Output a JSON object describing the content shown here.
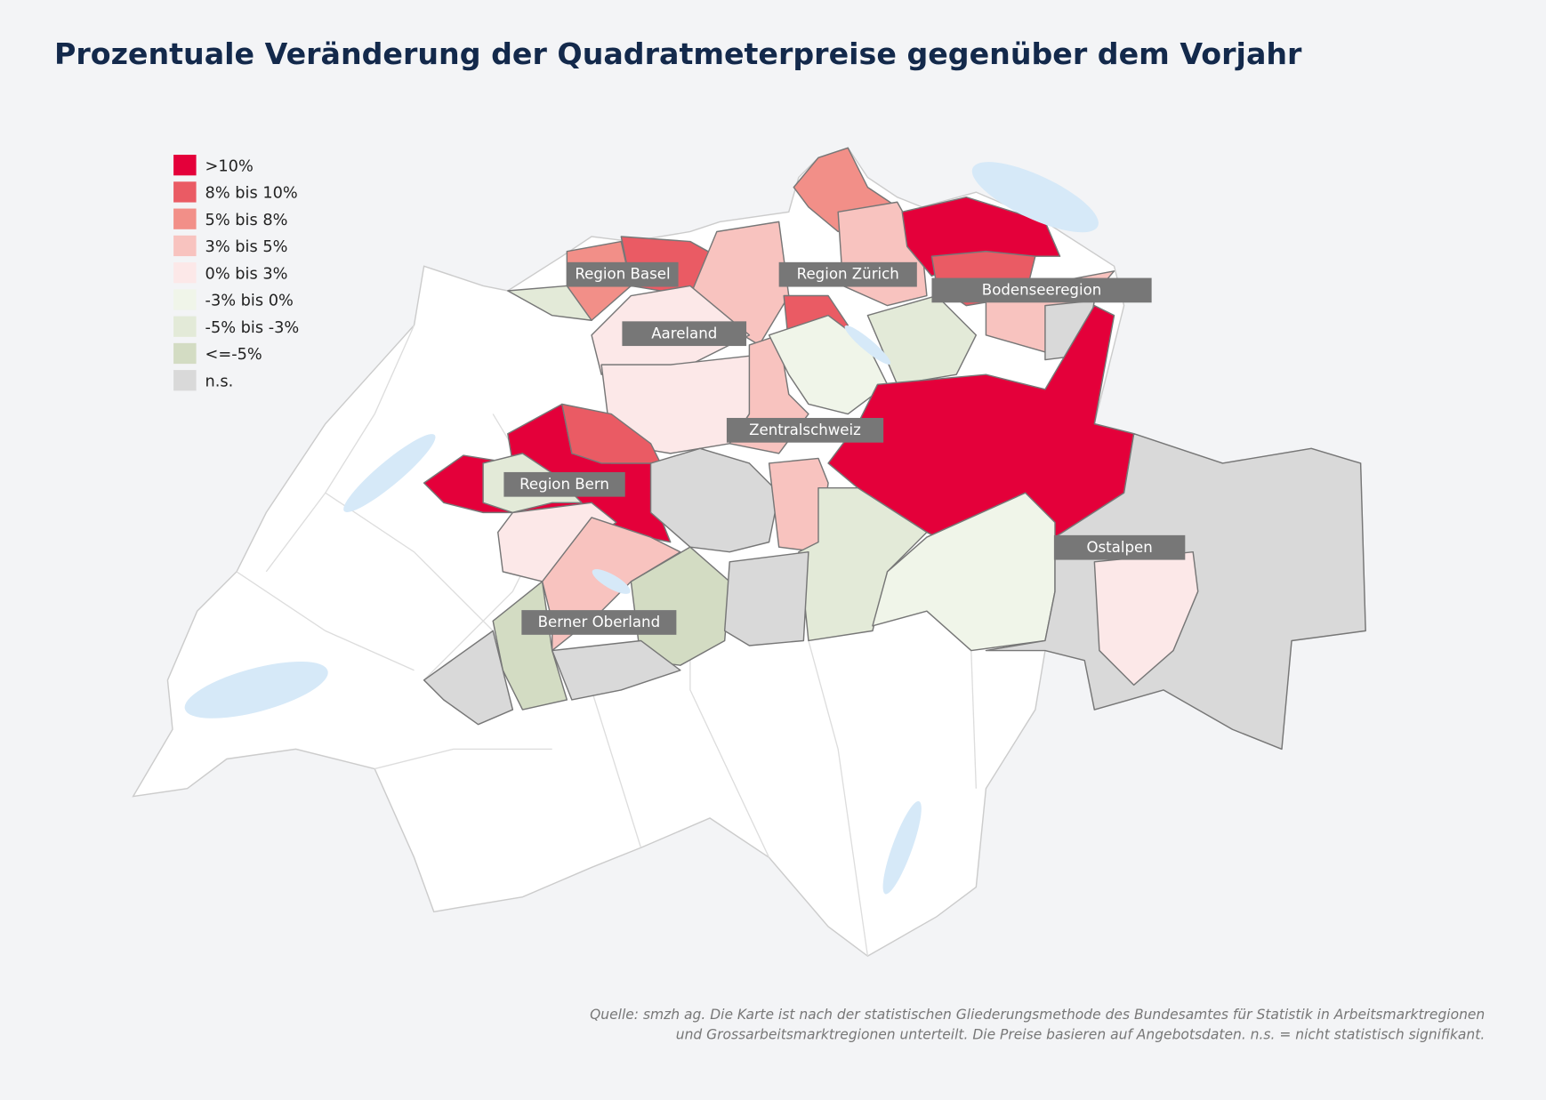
{
  "title": "Prozentuale Veränderung der Quadratmeterpreise gegenüber dem Vorjahr",
  "legend": [
    {
      "label": ">10%",
      "color": "#e4003a"
    },
    {
      "label": "8% bis 10%",
      "color": "#ea5b64"
    },
    {
      "label": "5% bis 8%",
      "color": "#f28f88"
    },
    {
      "label": "3% bis 5%",
      "color": "#f8c3bf"
    },
    {
      "label": "0% bis 3%",
      "color": "#fce8e8"
    },
    {
      "label": "-3% bis 0%",
      "color": "#f0f5e9"
    },
    {
      "label": "-5% bis  -3%",
      "color": "#e3ead8"
    },
    {
      "label": "<=-5%",
      "color": "#d3dcc3"
    },
    {
      "label": "n.s.",
      "color": "#d9d9d9"
    }
  ],
  "region_labels": [
    "Region Basel",
    "Region Zürich",
    "Bodenseeregion",
    "Aareland",
    "Zentralschweiz",
    "Region Bern",
    "Ostalpen",
    "Berner Oberland"
  ],
  "source": [
    "Quelle: smzh ag. Die Karte ist nach der statistischen Gliederungsmethode des Bundesamtes für Statistik in Arbeitsmarktregionen",
    "und Grossarbeitsmarktregionen unterteilt. Die Preise basieren auf Angebotsdaten. n.s. = nicht statistisch signifikant."
  ]
}
